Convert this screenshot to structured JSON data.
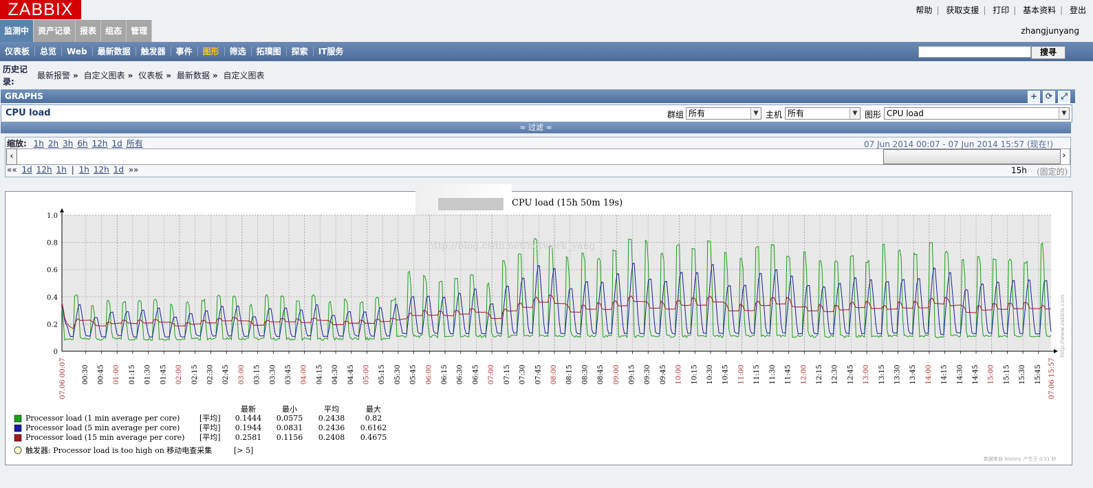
{
  "app": {
    "logo": "ZABBIX",
    "user": "zhangjunyang"
  },
  "top_links": [
    "帮助",
    "获取支援",
    "打印",
    "基本资料",
    "登出"
  ],
  "menu1": [
    {
      "label": "监测中",
      "active": true
    },
    {
      "label": "资产记录",
      "active": false
    },
    {
      "label": "报表",
      "active": false
    },
    {
      "label": "组态",
      "active": false
    },
    {
      "label": "管理",
      "active": false
    }
  ],
  "menu2": [
    {
      "label": "仪表板",
      "active": false
    },
    {
      "label": "总览",
      "active": false
    },
    {
      "label": "Web",
      "active": false
    },
    {
      "label": "最新数据",
      "active": false
    },
    {
      "label": "触发器",
      "active": false
    },
    {
      "label": "事件",
      "active": false
    },
    {
      "label": "图形",
      "active": true
    },
    {
      "label": "筛选",
      "active": false
    },
    {
      "label": "拓璞图",
      "active": false
    },
    {
      "label": "探索",
      "active": false
    },
    {
      "label": "IT服务",
      "active": false
    }
  ],
  "search": {
    "button": "搜寻",
    "value": ""
  },
  "history": {
    "label": "历史记录:",
    "items": [
      "最新报警",
      "自定义图表",
      "仪表板",
      "最新数据",
      "自定义图表"
    ],
    "arrow": "»"
  },
  "graphs_header": "GRAPHS",
  "header_icons": [
    "+",
    "⟳",
    "⤢"
  ],
  "title_bar": {
    "title": "CPU load",
    "group_label": "群组",
    "group_value": "所有",
    "host_label": "主机",
    "host_value": "所有",
    "graph_label": "图形",
    "graph_value": "CPU load"
  },
  "filter_label": "≈ 过滤 ≈",
  "zoom": {
    "label": "缩放:",
    "options": [
      "1h",
      "2h",
      "3h",
      "6h",
      "12h",
      "1d",
      "所有"
    ]
  },
  "period_range": "07 Jun 2014 00:07  -  07 Jun 2014 15:57 (现在!)",
  "nav": {
    "back_start": "««",
    "back": [
      "1d",
      "12h",
      "1h"
    ],
    "sep": "|",
    "forward": [
      "1h",
      "12h",
      "1d"
    ],
    "forward_end": "»»"
  },
  "period": {
    "length": "15h",
    "fixed": "(固定的)"
  },
  "chart_data": {
    "type": "line",
    "title": "CPU load (15h 50m 19s)",
    "ylim": [
      0,
      1.0
    ],
    "yticks": [
      "0",
      "0.2",
      "0.4",
      "0.6",
      "0.8",
      "1.0"
    ],
    "x_start_label": "07.06 00:07",
    "x_end_label": "07.06 15:57",
    "x_ticks": [
      "00:30",
      "00:45",
      "01:00",
      "01:15",
      "01:30",
      "01:45",
      "02:00",
      "02:15",
      "02:30",
      "02:45",
      "03:00",
      "03:15",
      "03:30",
      "03:45",
      "04:00",
      "04:15",
      "04:30",
      "04:45",
      "05:00",
      "05:15",
      "05:30",
      "05:45",
      "06:00",
      "06:15",
      "06:30",
      "06:45",
      "07:00",
      "07:15",
      "07:30",
      "07:45",
      "08:00",
      "08:15",
      "08:30",
      "08:45",
      "09:00",
      "09:15",
      "09:30",
      "09:45",
      "10:00",
      "10:15",
      "10:30",
      "10:45",
      "11:00",
      "11:15",
      "11:30",
      "11:45",
      "12:00",
      "12:15",
      "12:30",
      "12:45",
      "13:00",
      "13:15",
      "13:30",
      "13:45",
      "14:00",
      "14:15",
      "14:30",
      "14:45",
      "15:00",
      "15:15",
      "15:30",
      "15:45"
    ],
    "hour_color": "#b03030",
    "grid": true,
    "legend_headers": [
      "最新",
      "最小",
      "平均",
      "最大"
    ],
    "series": [
      {
        "name": "Processor load (1 min average per core)",
        "func": "[平均]",
        "color": "#1a9e1a",
        "last": "0.1444",
        "min": "0.0575",
        "avg": "0.2438",
        "max": "0.82"
      },
      {
        "name": "Processor load (5 min average per core)",
        "func": "[平均]",
        "color": "#1a1aa0",
        "last": "0.1944",
        "min": "0.0831",
        "avg": "0.2436",
        "max": "0.6162"
      },
      {
        "name": "Processor load (15 min average per core)",
        "func": "[平均]",
        "color": "#a01a1a",
        "last": "0.2581",
        "min": "0.1156",
        "avg": "0.2408",
        "max": "0.4675"
      }
    ],
    "trigger": {
      "label": "触发器: Processor load is too high on 移动电查采集",
      "value": "[> 5]"
    }
  },
  "watermark": "http://blog.csdn.net/network_yang",
  "side_text": "http://www.zabbix.com",
  "footer_text": "数据来自 history. 产生于 0.51 秒"
}
